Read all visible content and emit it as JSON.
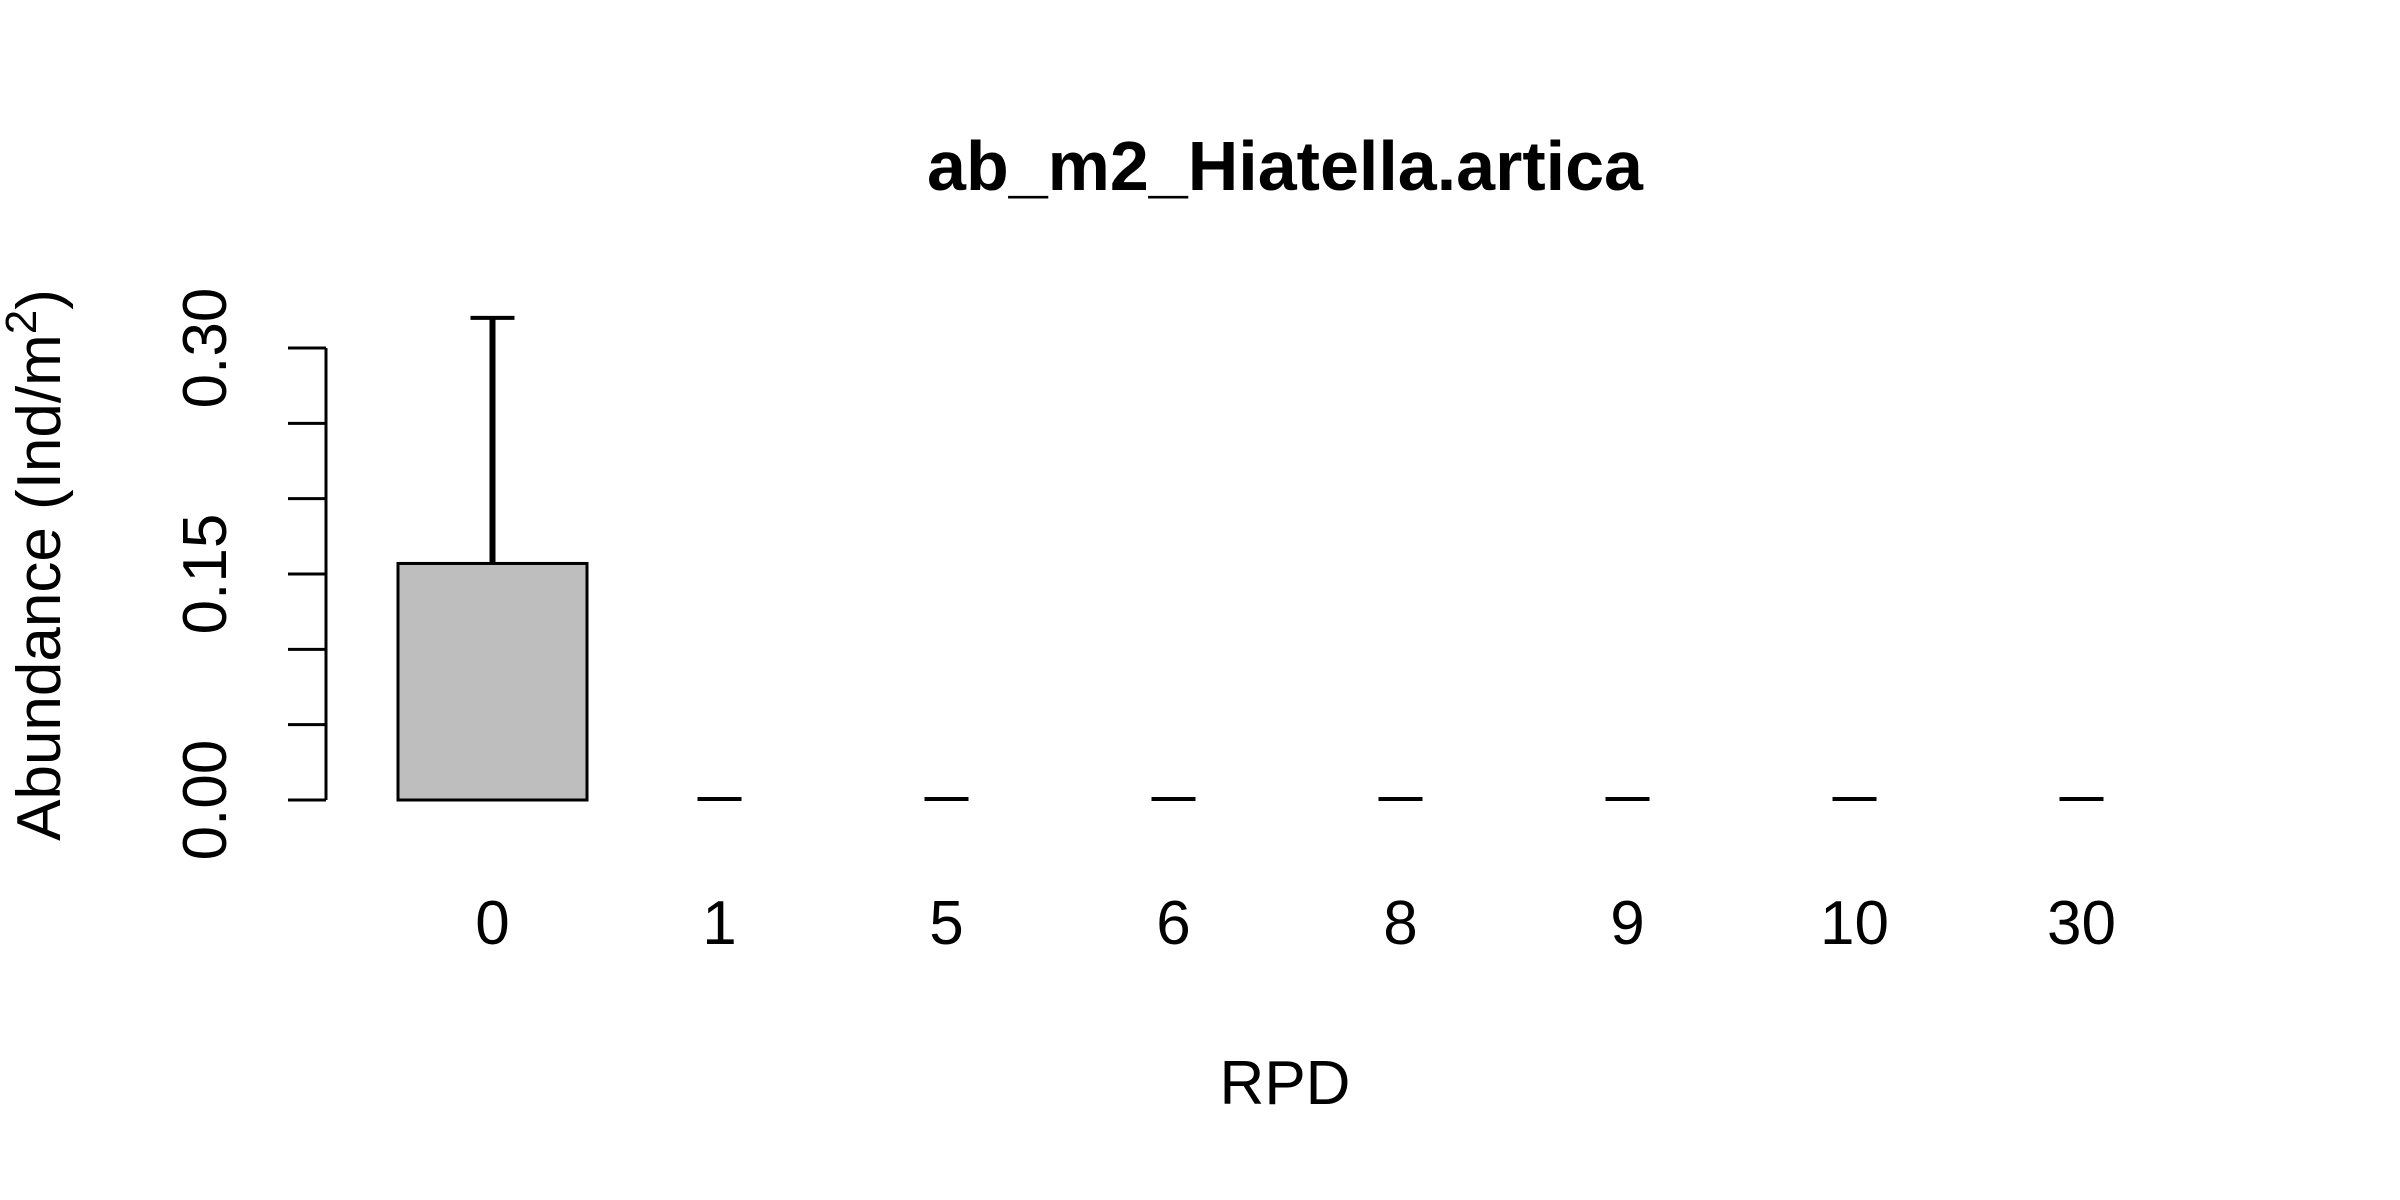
{
  "chart_data": {
    "type": "bar",
    "title": "ab_m2_Hiatella.artica",
    "xlabel": "RPD",
    "ylabel": {
      "prefix": "Abundance (Ind/m",
      "superscript": "2",
      "suffix": ")"
    },
    "categories": [
      "0",
      "1",
      "5",
      "6",
      "8",
      "9",
      "10",
      "30"
    ],
    "values": [
      0.157,
      0,
      0,
      0,
      0,
      0,
      0,
      0
    ],
    "error_upper": [
      0.32,
      0,
      0,
      0,
      0,
      0,
      0,
      0
    ],
    "ylim": [
      0,
      0.3
    ],
    "yticks": [
      0,
      0.05,
      0.1,
      0.15,
      0.2,
      0.25,
      0.3
    ],
    "ytick_labels": [
      "0.00",
      "",
      "",
      "0.15",
      "",
      "",
      "0.30"
    ],
    "bar_color": "#bebebe",
    "grid": false,
    "legend": "none"
  }
}
